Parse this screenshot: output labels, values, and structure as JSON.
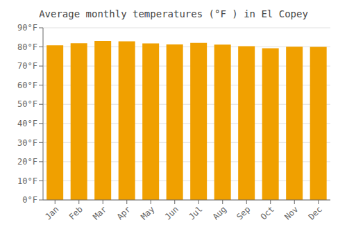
{
  "chart_data": {
    "type": "bar",
    "title": "Average monthly temperatures (°F ) in El Copey",
    "categories": [
      "Jan",
      "Feb",
      "Mar",
      "Apr",
      "May",
      "Jun",
      "Jul",
      "Aug",
      "Sep",
      "Oct",
      "Nov",
      "Dec"
    ],
    "values": [
      80.8,
      81.9,
      83.1,
      82.9,
      81.8,
      81.3,
      82.1,
      81.2,
      80.4,
      79.3,
      80.1,
      80.0
    ],
    "color": "#F0A000",
    "ylim": [
      0,
      90
    ],
    "yticks": [
      {
        "value": 0,
        "label": "0°F"
      },
      {
        "value": 10,
        "label": "10°F"
      },
      {
        "value": 20,
        "label": "20°F"
      },
      {
        "value": 30,
        "label": "30°F"
      },
      {
        "value": 40,
        "label": "40°F"
      },
      {
        "value": 50,
        "label": "50°F"
      },
      {
        "value": 60,
        "label": "60°F"
      },
      {
        "value": 70,
        "label": "70°F"
      },
      {
        "value": 80,
        "label": "80°F"
      },
      {
        "value": 90,
        "label": "90°F"
      }
    ],
    "grid": true
  }
}
